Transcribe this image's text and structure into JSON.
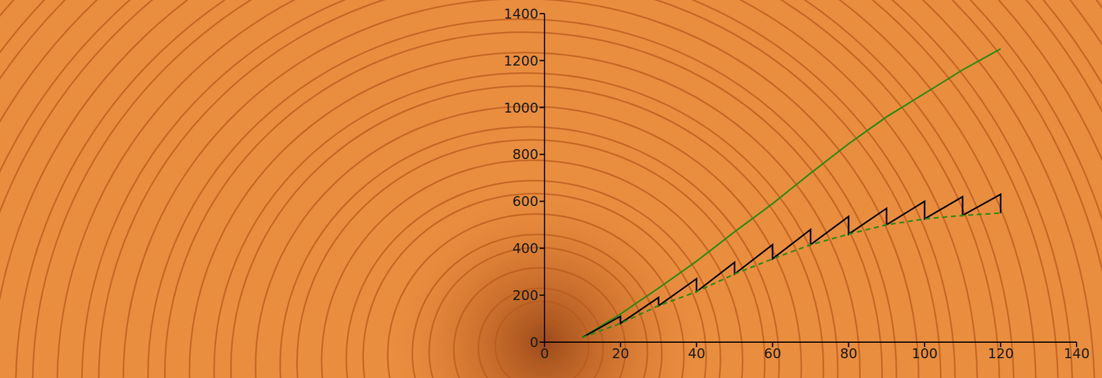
{
  "chart_data": {
    "type": "line",
    "xlim": [
      0,
      140
    ],
    "xticks": [
      0,
      20,
      40,
      60,
      80,
      100,
      120,
      140
    ],
    "ylim": [
      0,
      1400
    ],
    "yticks": [
      0,
      200,
      400,
      600,
      800,
      1000,
      1200,
      1400
    ],
    "grid": false,
    "series": [
      {
        "color": "#2a8a10",
        "line_style": "solid",
        "x": [
          10,
          20,
          30,
          40,
          50,
          60,
          70,
          80,
          90,
          100,
          110,
          120
        ],
        "values": [
          20,
          120,
          230,
          345,
          470,
          590,
          720,
          845,
          960,
          1060,
          1160,
          1250
        ]
      },
      {
        "color": "#000000",
        "line_style": "solid",
        "x": [
          10,
          20,
          20,
          30,
          30,
          40,
          40,
          50,
          50,
          60,
          60,
          70,
          70,
          80,
          80,
          90,
          90,
          100,
          100,
          110,
          110,
          120,
          120
        ],
        "values": [
          20,
          110,
          80,
          190,
          155,
          270,
          215,
          340,
          290,
          415,
          355,
          480,
          415,
          535,
          460,
          570,
          500,
          600,
          525,
          620,
          540,
          630,
          550
        ]
      },
      {
        "color": "#2a8a10",
        "line_style": "dashed",
        "x": [
          10,
          20,
          30,
          40,
          50,
          60,
          70,
          80,
          90,
          100,
          110,
          120
        ],
        "values": [
          20,
          80,
          155,
          215,
          290,
          355,
          415,
          460,
          500,
          525,
          540,
          550
        ]
      }
    ]
  }
}
